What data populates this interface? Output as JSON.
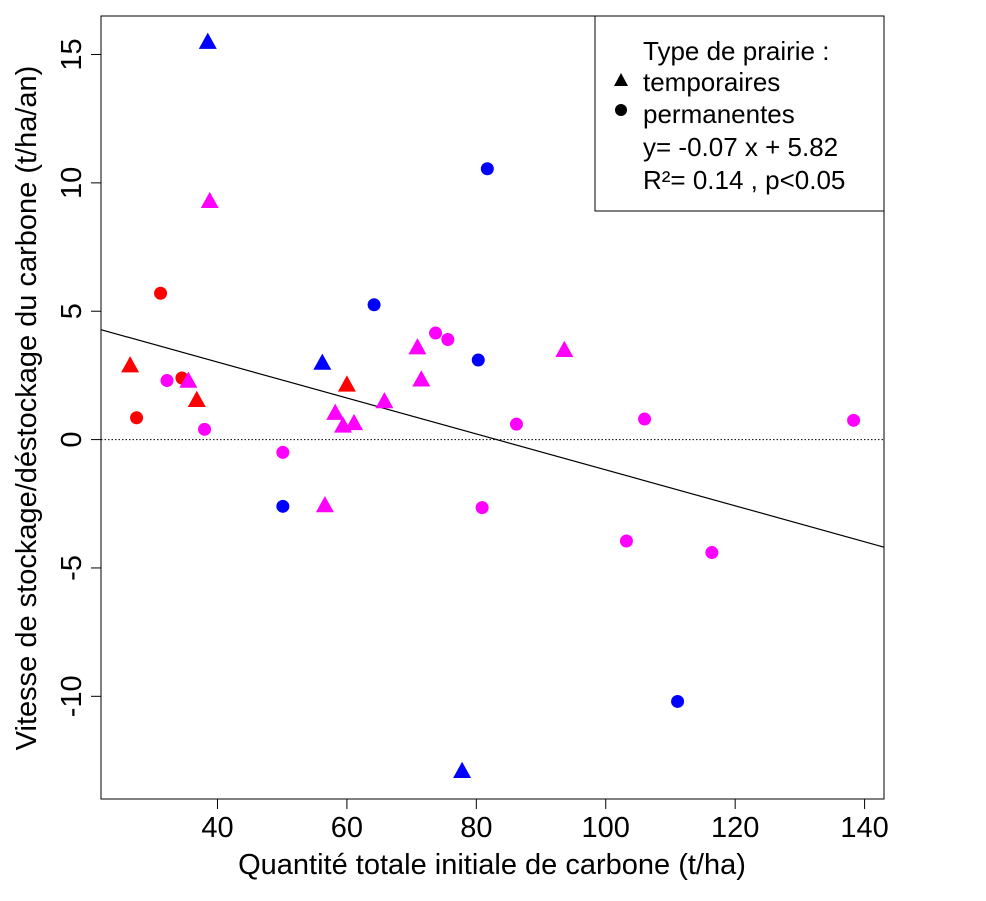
{
  "chart_data": {
    "type": "scatter",
    "xlabel": "Quantité totale initiale de carbone  (t/ha)",
    "ylabel": "Vitesse de stockage/déstockage du carbone (t/ha/an)",
    "xlim": [
      22,
      143
    ],
    "ylim": [
      -14,
      16.5
    ],
    "xticks": [
      40,
      60,
      80,
      100,
      120,
      140
    ],
    "xtick_labels": [
      "40",
      "60",
      "80",
      "100",
      "120",
      "140"
    ],
    "yticks": [
      -10,
      -5,
      0,
      5,
      10,
      15
    ],
    "ytick_labels": [
      "-10",
      "-5",
      "0",
      "5",
      "10",
      "15"
    ],
    "grid": false,
    "reference_line_y": 0,
    "regression": {
      "slope": -0.07,
      "intercept": 5.82
    },
    "colors": {
      "red": "#ff0000",
      "blue": "#0000ff",
      "magenta": "#ff00ff"
    },
    "legend": {
      "placement": "top-right",
      "title": "Type de prairie :",
      "items": [
        {
          "marker": "triangle",
          "label": "temporaires"
        },
        {
          "marker": "circle",
          "label": "permanentes"
        }
      ],
      "equation": "y= -0.07  x +  5.82",
      "r2": "R²=  0.14 , p<0.05"
    },
    "points": [
      {
        "x": 38.5,
        "y": 15.5,
        "shape": "triangle",
        "color": "blue"
      },
      {
        "x": 38.8,
        "y": 9.3,
        "shape": "triangle",
        "color": "magenta"
      },
      {
        "x": 31.2,
        "y": 5.7,
        "shape": "circle",
        "color": "red"
      },
      {
        "x": 26.5,
        "y": 2.9,
        "shape": "triangle",
        "color": "red"
      },
      {
        "x": 27.5,
        "y": 0.85,
        "shape": "circle",
        "color": "red"
      },
      {
        "x": 32.2,
        "y": 2.3,
        "shape": "circle",
        "color": "magenta"
      },
      {
        "x": 34.5,
        "y": 2.4,
        "shape": "circle",
        "color": "red"
      },
      {
        "x": 35.5,
        "y": 2.3,
        "shape": "triangle",
        "color": "magenta"
      },
      {
        "x": 36.8,
        "y": 1.55,
        "shape": "triangle",
        "color": "red"
      },
      {
        "x": 38.0,
        "y": 0.4,
        "shape": "circle",
        "color": "magenta"
      },
      {
        "x": 50.1,
        "y": -0.5,
        "shape": "circle",
        "color": "magenta"
      },
      {
        "x": 50.1,
        "y": -2.6,
        "shape": "circle",
        "color": "blue"
      },
      {
        "x": 56.2,
        "y": 3.0,
        "shape": "triangle",
        "color": "blue"
      },
      {
        "x": 56.6,
        "y": -2.55,
        "shape": "triangle",
        "color": "magenta"
      },
      {
        "x": 58.2,
        "y": 1.05,
        "shape": "triangle",
        "color": "magenta"
      },
      {
        "x": 59.4,
        "y": 0.55,
        "shape": "triangle",
        "color": "magenta"
      },
      {
        "x": 60.0,
        "y": 2.15,
        "shape": "triangle",
        "color": "red"
      },
      {
        "x": 61.1,
        "y": 0.65,
        "shape": "triangle",
        "color": "magenta"
      },
      {
        "x": 64.2,
        "y": 5.25,
        "shape": "circle",
        "color": "blue"
      },
      {
        "x": 65.8,
        "y": 1.5,
        "shape": "triangle",
        "color": "magenta"
      },
      {
        "x": 70.9,
        "y": 3.6,
        "shape": "triangle",
        "color": "magenta"
      },
      {
        "x": 71.5,
        "y": 2.35,
        "shape": "triangle",
        "color": "magenta"
      },
      {
        "x": 73.7,
        "y": 4.15,
        "shape": "circle",
        "color": "magenta"
      },
      {
        "x": 75.6,
        "y": 3.9,
        "shape": "circle",
        "color": "magenta"
      },
      {
        "x": 77.8,
        "y": -12.9,
        "shape": "triangle",
        "color": "blue"
      },
      {
        "x": 80.3,
        "y": 3.1,
        "shape": "circle",
        "color": "blue"
      },
      {
        "x": 80.9,
        "y": -2.65,
        "shape": "circle",
        "color": "magenta"
      },
      {
        "x": 81.7,
        "y": 10.55,
        "shape": "circle",
        "color": "blue"
      },
      {
        "x": 86.2,
        "y": 0.6,
        "shape": "circle",
        "color": "magenta"
      },
      {
        "x": 93.6,
        "y": 3.5,
        "shape": "triangle",
        "color": "magenta"
      },
      {
        "x": 103.2,
        "y": -3.95,
        "shape": "circle",
        "color": "magenta"
      },
      {
        "x": 106.0,
        "y": 0.8,
        "shape": "circle",
        "color": "magenta"
      },
      {
        "x": 111.1,
        "y": -10.2,
        "shape": "circle",
        "color": "blue"
      },
      {
        "x": 116.4,
        "y": -4.4,
        "shape": "circle",
        "color": "magenta"
      },
      {
        "x": 138.3,
        "y": 0.75,
        "shape": "circle",
        "color": "magenta"
      }
    ]
  }
}
